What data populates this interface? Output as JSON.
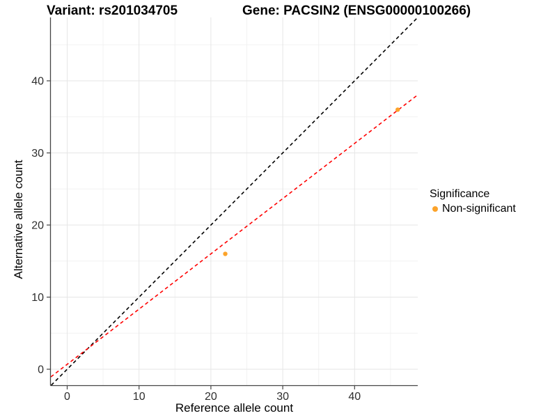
{
  "chart_data": {
    "type": "scatter",
    "titles": {
      "left": "Variant: rs201034705",
      "right": "Gene: PACSIN2 (ENSG00000100266)"
    },
    "xlabel": "Reference allele count",
    "ylabel": "Alternative allele count",
    "x_ticks": [
      0,
      10,
      20,
      30,
      40
    ],
    "y_ticks": [
      0,
      10,
      20,
      30,
      40
    ],
    "xlim": [
      -2.3,
      48.8
    ],
    "ylim": [
      -2.2,
      48.8
    ],
    "grid": "major and minor gridlines, white background",
    "legend_position": "right",
    "series": [
      {
        "name": "Non-significant",
        "color": "#FCA32A",
        "points": [
          [
            22,
            16
          ],
          [
            46,
            36
          ]
        ]
      }
    ],
    "ref_lines": [
      {
        "name": "identity-line",
        "color": "#000000",
        "dash": true,
        "slope": 1,
        "intercept": 0
      },
      {
        "name": "fit-line",
        "color": "#FF0000",
        "dash": true,
        "slope": 0.766,
        "intercept": 0.68
      }
    ],
    "legend": {
      "title": "Significance",
      "items": [
        {
          "label": "Non-significant",
          "color": "#FCA32A"
        }
      ]
    },
    "colors": {
      "grid_major": "#E6E6E6",
      "grid_minor": "#F2F2F2",
      "axis_line": "#444444",
      "tick_label": "#2E2E2E"
    }
  }
}
